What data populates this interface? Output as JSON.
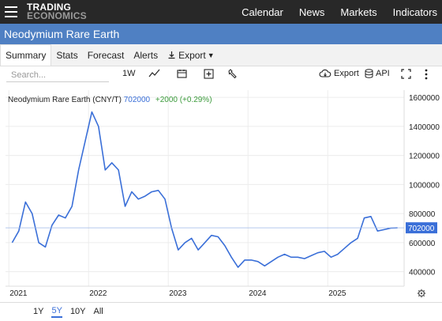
{
  "header": {
    "logo_line1": "TRADING",
    "logo_line2": "ECONOMICS",
    "nav": [
      "Calendar",
      "News",
      "Markets",
      "Indicators"
    ]
  },
  "title": "Neodymium Rare Earth",
  "tabs": [
    {
      "label": "Summary",
      "active": true
    },
    {
      "label": "Stats"
    },
    {
      "label": "Forecast"
    },
    {
      "label": "Alerts"
    },
    {
      "label": "Export"
    }
  ],
  "toolbar": {
    "search_placeholder": "Search...",
    "range_label": "1W",
    "export_label": "Export",
    "api_label": "API"
  },
  "legend": {
    "name": "Neodymium Rare Earth (CNY/T)",
    "value": "702000",
    "change": "+2000 (+0.29%)"
  },
  "periods": [
    {
      "label": "1Y"
    },
    {
      "label": "5Y",
      "active": true
    },
    {
      "label": "10Y"
    },
    {
      "label": "All"
    }
  ],
  "chart_data": {
    "type": "line",
    "series": [
      {
        "x": [
          "2021-01",
          "2021-02",
          "2021-03",
          "2021-04",
          "2021-05",
          "2021-06",
          "2021-07",
          "2021-08",
          "2021-09",
          "2021-10",
          "2021-11",
          "2021-12",
          "2022-01",
          "2022-02",
          "2022-03",
          "2022-04",
          "2022-05",
          "2022-06",
          "2022-07",
          "2022-08",
          "2022-09",
          "2022-10",
          "2022-11",
          "2022-12",
          "2023-01",
          "2023-02",
          "2023-03",
          "2023-04",
          "2023-05",
          "2023-06",
          "2023-07",
          "2023-08",
          "2023-09",
          "2023-10",
          "2023-11",
          "2023-12",
          "2024-01",
          "2024-02",
          "2024-03",
          "2024-04",
          "2024-05",
          "2024-06",
          "2024-07",
          "2024-08",
          "2024-09",
          "2024-10",
          "2024-11",
          "2024-12",
          "2025-01",
          "2025-02",
          "2025-03",
          "2025-04",
          "2025-05",
          "2025-06",
          "2025-07",
          "2025-08",
          "2025-09",
          "2025-10",
          "2025-11"
        ],
        "values": [
          600000,
          680000,
          880000,
          800000,
          600000,
          570000,
          720000,
          790000,
          770000,
          850000,
          1100000,
          1300000,
          1500000,
          1400000,
          1100000,
          1150000,
          1100000,
          850000,
          950000,
          900000,
          920000,
          950000,
          960000,
          900000,
          700000,
          550000,
          600000,
          630000,
          550000,
          600000,
          650000,
          640000,
          580000,
          500000,
          430000,
          480000,
          480000,
          470000,
          440000,
          470000,
          500000,
          520000,
          500000,
          500000,
          490000,
          510000,
          530000,
          540000,
          500000,
          520000,
          560000,
          600000,
          630000,
          770000,
          780000,
          680000,
          690000,
          700000,
          702000
        ]
      }
    ],
    "yticks": [
      "400000",
      "600000",
      "800000",
      "1000000",
      "1200000",
      "1400000",
      "1600000"
    ],
    "xticks": [
      "2021",
      "2022",
      "2023",
      "2024",
      "2025"
    ],
    "ylim": [
      300000,
      1650000
    ],
    "last_value_label": "702000",
    "line_color": "#3a6fd8",
    "grid": true
  }
}
